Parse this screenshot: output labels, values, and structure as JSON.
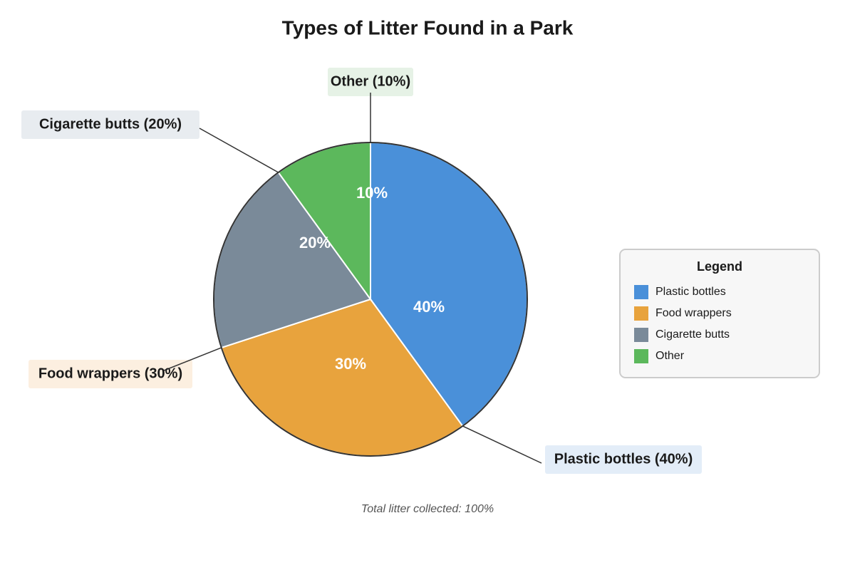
{
  "chart_data": {
    "type": "pie",
    "title": "Types of Litter Found in a Park",
    "categories": [
      "Plastic bottles",
      "Food wrappers",
      "Cigarette butts",
      "Other"
    ],
    "values": [
      40,
      30,
      20,
      10
    ],
    "value_labels": [
      "40%",
      "30%",
      "20%",
      "10%"
    ],
    "colors": [
      "#4a90d9",
      "#e8a33d",
      "#7a8a99",
      "#5cb85c"
    ],
    "callouts": [
      "Plastic bottles (40%)",
      "Food wrappers (30%)",
      "Cigarette butts (20%)",
      "Other (10%)"
    ],
    "legend_title": "Legend",
    "legend": "right",
    "note": "Total litter collected: 100%"
  }
}
